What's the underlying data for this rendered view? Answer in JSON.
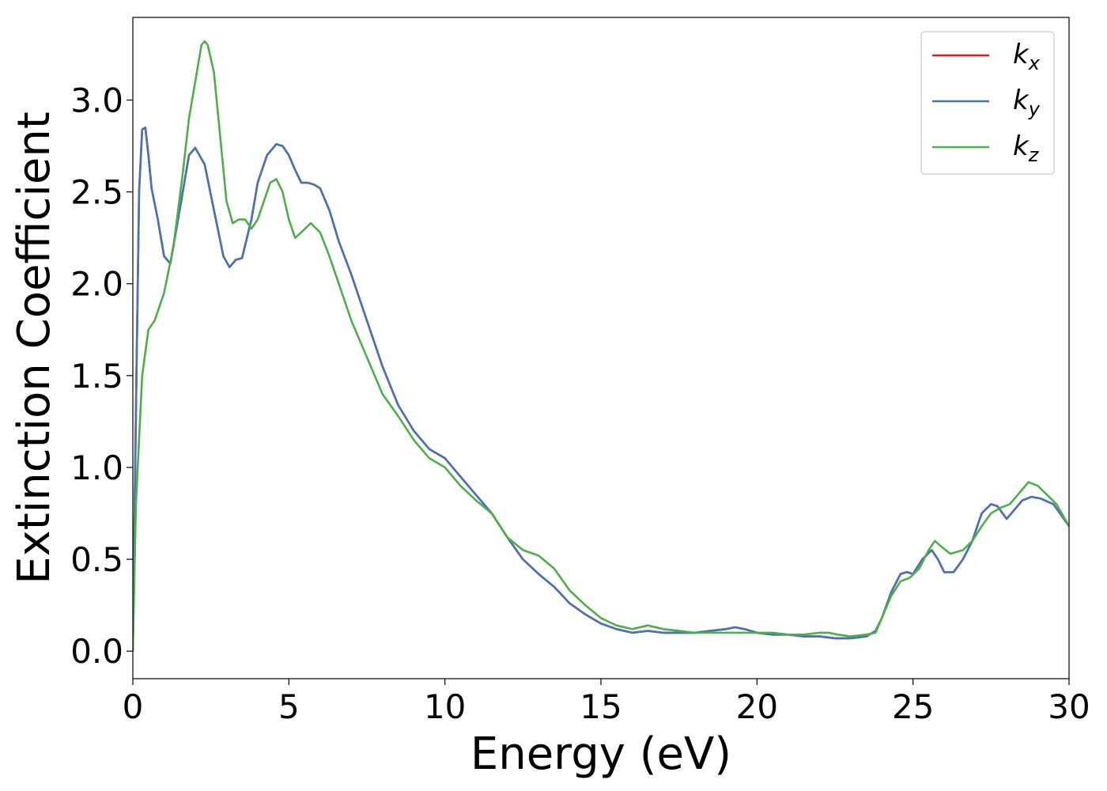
{
  "chart_data": {
    "type": "line",
    "title": "",
    "xlabel": "Energy (eV)",
    "ylabel": "Extinction Coefficient",
    "xlim": [
      0,
      30
    ],
    "ylim": [
      -0.15,
      3.45
    ],
    "xticks": [
      0,
      5,
      10,
      15,
      20,
      25,
      30
    ],
    "xtick_labels": [
      "0",
      "5",
      "10",
      "15",
      "20",
      "25",
      "30"
    ],
    "yticks": [
      0.0,
      0.5,
      1.0,
      1.5,
      2.0,
      2.5,
      3.0
    ],
    "ytick_labels": [
      "0.0",
      "0.5",
      "1.0",
      "1.5",
      "2.0",
      "2.5",
      "3.0"
    ],
    "grid": false,
    "legend_position": "top-right",
    "series": [
      {
        "name": "k",
        "subscript": "x",
        "color": "#e41a1c",
        "x": [
          0,
          0.1,
          0.2,
          0.3,
          0.4,
          0.5,
          0.6,
          0.8,
          1.0,
          1.2,
          1.5,
          1.8,
          2.0,
          2.3,
          2.6,
          2.9,
          3.1,
          3.3,
          3.5,
          3.8,
          4.0,
          4.3,
          4.6,
          4.8,
          5.0,
          5.2,
          5.4,
          5.6,
          5.8,
          6.0,
          6.3,
          6.6,
          7.0,
          7.5,
          8.0,
          8.5,
          9.0,
          9.5,
          10.0,
          10.5,
          11.0,
          11.5,
          12.0,
          12.5,
          13.0,
          13.5,
          14.0,
          14.5,
          15.0,
          15.5,
          16.0,
          16.5,
          17.0,
          17.5,
          18.0,
          18.5,
          19.0,
          19.3,
          19.6,
          20.0,
          20.5,
          21.0,
          21.5,
          22.0,
          22.5,
          23.0,
          23.5,
          23.8,
          24.0,
          24.3,
          24.6,
          24.8,
          25.0,
          25.3,
          25.6,
          25.8,
          26.0,
          26.3,
          26.6,
          26.9,
          27.2,
          27.5,
          27.7,
          28.0,
          28.2,
          28.5,
          28.8,
          29.1,
          29.5,
          30.0
        ],
        "y": [
          0.0,
          1.3,
          2.5,
          2.84,
          2.85,
          2.7,
          2.52,
          2.35,
          2.15,
          2.11,
          2.4,
          2.7,
          2.74,
          2.65,
          2.4,
          2.15,
          2.09,
          2.13,
          2.14,
          2.35,
          2.55,
          2.7,
          2.76,
          2.75,
          2.7,
          2.62,
          2.55,
          2.55,
          2.54,
          2.52,
          2.4,
          2.23,
          2.05,
          1.8,
          1.55,
          1.34,
          1.2,
          1.1,
          1.05,
          0.95,
          0.85,
          0.75,
          0.62,
          0.5,
          0.42,
          0.35,
          0.26,
          0.2,
          0.15,
          0.12,
          0.1,
          0.11,
          0.1,
          0.1,
          0.1,
          0.11,
          0.12,
          0.13,
          0.12,
          0.1,
          0.09,
          0.09,
          0.08,
          0.08,
          0.07,
          0.07,
          0.08,
          0.11,
          0.18,
          0.32,
          0.42,
          0.43,
          0.42,
          0.5,
          0.55,
          0.5,
          0.43,
          0.43,
          0.5,
          0.6,
          0.75,
          0.8,
          0.79,
          0.72,
          0.76,
          0.82,
          0.84,
          0.83,
          0.8,
          0.68
        ]
      },
      {
        "name": "k",
        "subscript": "y",
        "color": "#4575b4",
        "x": [
          0,
          0.1,
          0.2,
          0.3,
          0.4,
          0.5,
          0.6,
          0.8,
          1.0,
          1.2,
          1.5,
          1.8,
          2.0,
          2.3,
          2.6,
          2.9,
          3.1,
          3.3,
          3.5,
          3.8,
          4.0,
          4.3,
          4.6,
          4.8,
          5.0,
          5.2,
          5.4,
          5.6,
          5.8,
          6.0,
          6.3,
          6.6,
          7.0,
          7.5,
          8.0,
          8.5,
          9.0,
          9.5,
          10.0,
          10.5,
          11.0,
          11.5,
          12.0,
          12.5,
          13.0,
          13.5,
          14.0,
          14.5,
          15.0,
          15.5,
          16.0,
          16.5,
          17.0,
          17.5,
          18.0,
          18.5,
          19.0,
          19.3,
          19.6,
          20.0,
          20.5,
          21.0,
          21.5,
          22.0,
          22.5,
          23.0,
          23.5,
          23.8,
          24.0,
          24.3,
          24.6,
          24.8,
          25.0,
          25.3,
          25.6,
          25.8,
          26.0,
          26.3,
          26.6,
          26.9,
          27.2,
          27.5,
          27.7,
          28.0,
          28.2,
          28.5,
          28.8,
          29.1,
          29.5,
          30.0
        ],
        "y": [
          0.0,
          1.3,
          2.5,
          2.84,
          2.85,
          2.7,
          2.52,
          2.35,
          2.15,
          2.11,
          2.4,
          2.7,
          2.74,
          2.65,
          2.4,
          2.15,
          2.09,
          2.13,
          2.14,
          2.35,
          2.55,
          2.7,
          2.76,
          2.75,
          2.7,
          2.62,
          2.55,
          2.55,
          2.54,
          2.52,
          2.4,
          2.23,
          2.05,
          1.8,
          1.55,
          1.34,
          1.2,
          1.1,
          1.05,
          0.95,
          0.85,
          0.75,
          0.62,
          0.5,
          0.42,
          0.35,
          0.26,
          0.2,
          0.15,
          0.12,
          0.1,
          0.11,
          0.1,
          0.1,
          0.1,
          0.11,
          0.12,
          0.13,
          0.12,
          0.1,
          0.09,
          0.09,
          0.08,
          0.08,
          0.07,
          0.07,
          0.08,
          0.11,
          0.18,
          0.32,
          0.42,
          0.43,
          0.42,
          0.5,
          0.55,
          0.5,
          0.43,
          0.43,
          0.5,
          0.6,
          0.75,
          0.8,
          0.79,
          0.72,
          0.76,
          0.82,
          0.84,
          0.83,
          0.8,
          0.68
        ]
      },
      {
        "name": "k",
        "subscript": "z",
        "color": "#4daf4a",
        "x": [
          0,
          0.1,
          0.3,
          0.5,
          0.7,
          1.0,
          1.3,
          1.6,
          1.8,
          2.0,
          2.2,
          2.3,
          2.4,
          2.6,
          2.8,
          3.0,
          3.2,
          3.4,
          3.6,
          3.8,
          4.0,
          4.2,
          4.4,
          4.6,
          4.8,
          5.0,
          5.2,
          5.4,
          5.7,
          6.0,
          6.3,
          6.6,
          7.0,
          7.5,
          8.0,
          8.5,
          9.0,
          9.5,
          10.0,
          10.5,
          11.0,
          11.5,
          12.0,
          12.5,
          13.0,
          13.5,
          14.0,
          14.5,
          15.0,
          15.5,
          16.0,
          16.5,
          17.0,
          17.5,
          18.0,
          18.5,
          19.0,
          19.5,
          20.0,
          20.5,
          21.0,
          21.5,
          22.0,
          22.3,
          22.6,
          23.0,
          23.5,
          23.8,
          24.0,
          24.3,
          24.6,
          24.9,
          25.2,
          25.5,
          25.7,
          25.9,
          26.2,
          26.6,
          26.9,
          27.2,
          27.5,
          27.8,
          28.1,
          28.4,
          28.7,
          29.0,
          29.3,
          29.6,
          30.0
        ],
        "y": [
          0.0,
          0.8,
          1.5,
          1.75,
          1.8,
          1.95,
          2.2,
          2.6,
          2.9,
          3.1,
          3.3,
          3.32,
          3.3,
          3.15,
          2.8,
          2.45,
          2.33,
          2.35,
          2.35,
          2.3,
          2.35,
          2.45,
          2.55,
          2.57,
          2.5,
          2.35,
          2.25,
          2.28,
          2.33,
          2.28,
          2.15,
          2.0,
          1.8,
          1.6,
          1.4,
          1.28,
          1.15,
          1.05,
          1.0,
          0.9,
          0.82,
          0.75,
          0.62,
          0.55,
          0.52,
          0.45,
          0.33,
          0.25,
          0.18,
          0.14,
          0.12,
          0.14,
          0.12,
          0.11,
          0.1,
          0.1,
          0.1,
          0.1,
          0.1,
          0.1,
          0.09,
          0.09,
          0.1,
          0.1,
          0.09,
          0.08,
          0.09,
          0.1,
          0.18,
          0.3,
          0.38,
          0.4,
          0.45,
          0.55,
          0.6,
          0.57,
          0.53,
          0.55,
          0.6,
          0.68,
          0.75,
          0.78,
          0.8,
          0.86,
          0.92,
          0.9,
          0.85,
          0.8,
          0.68
        ]
      }
    ]
  }
}
